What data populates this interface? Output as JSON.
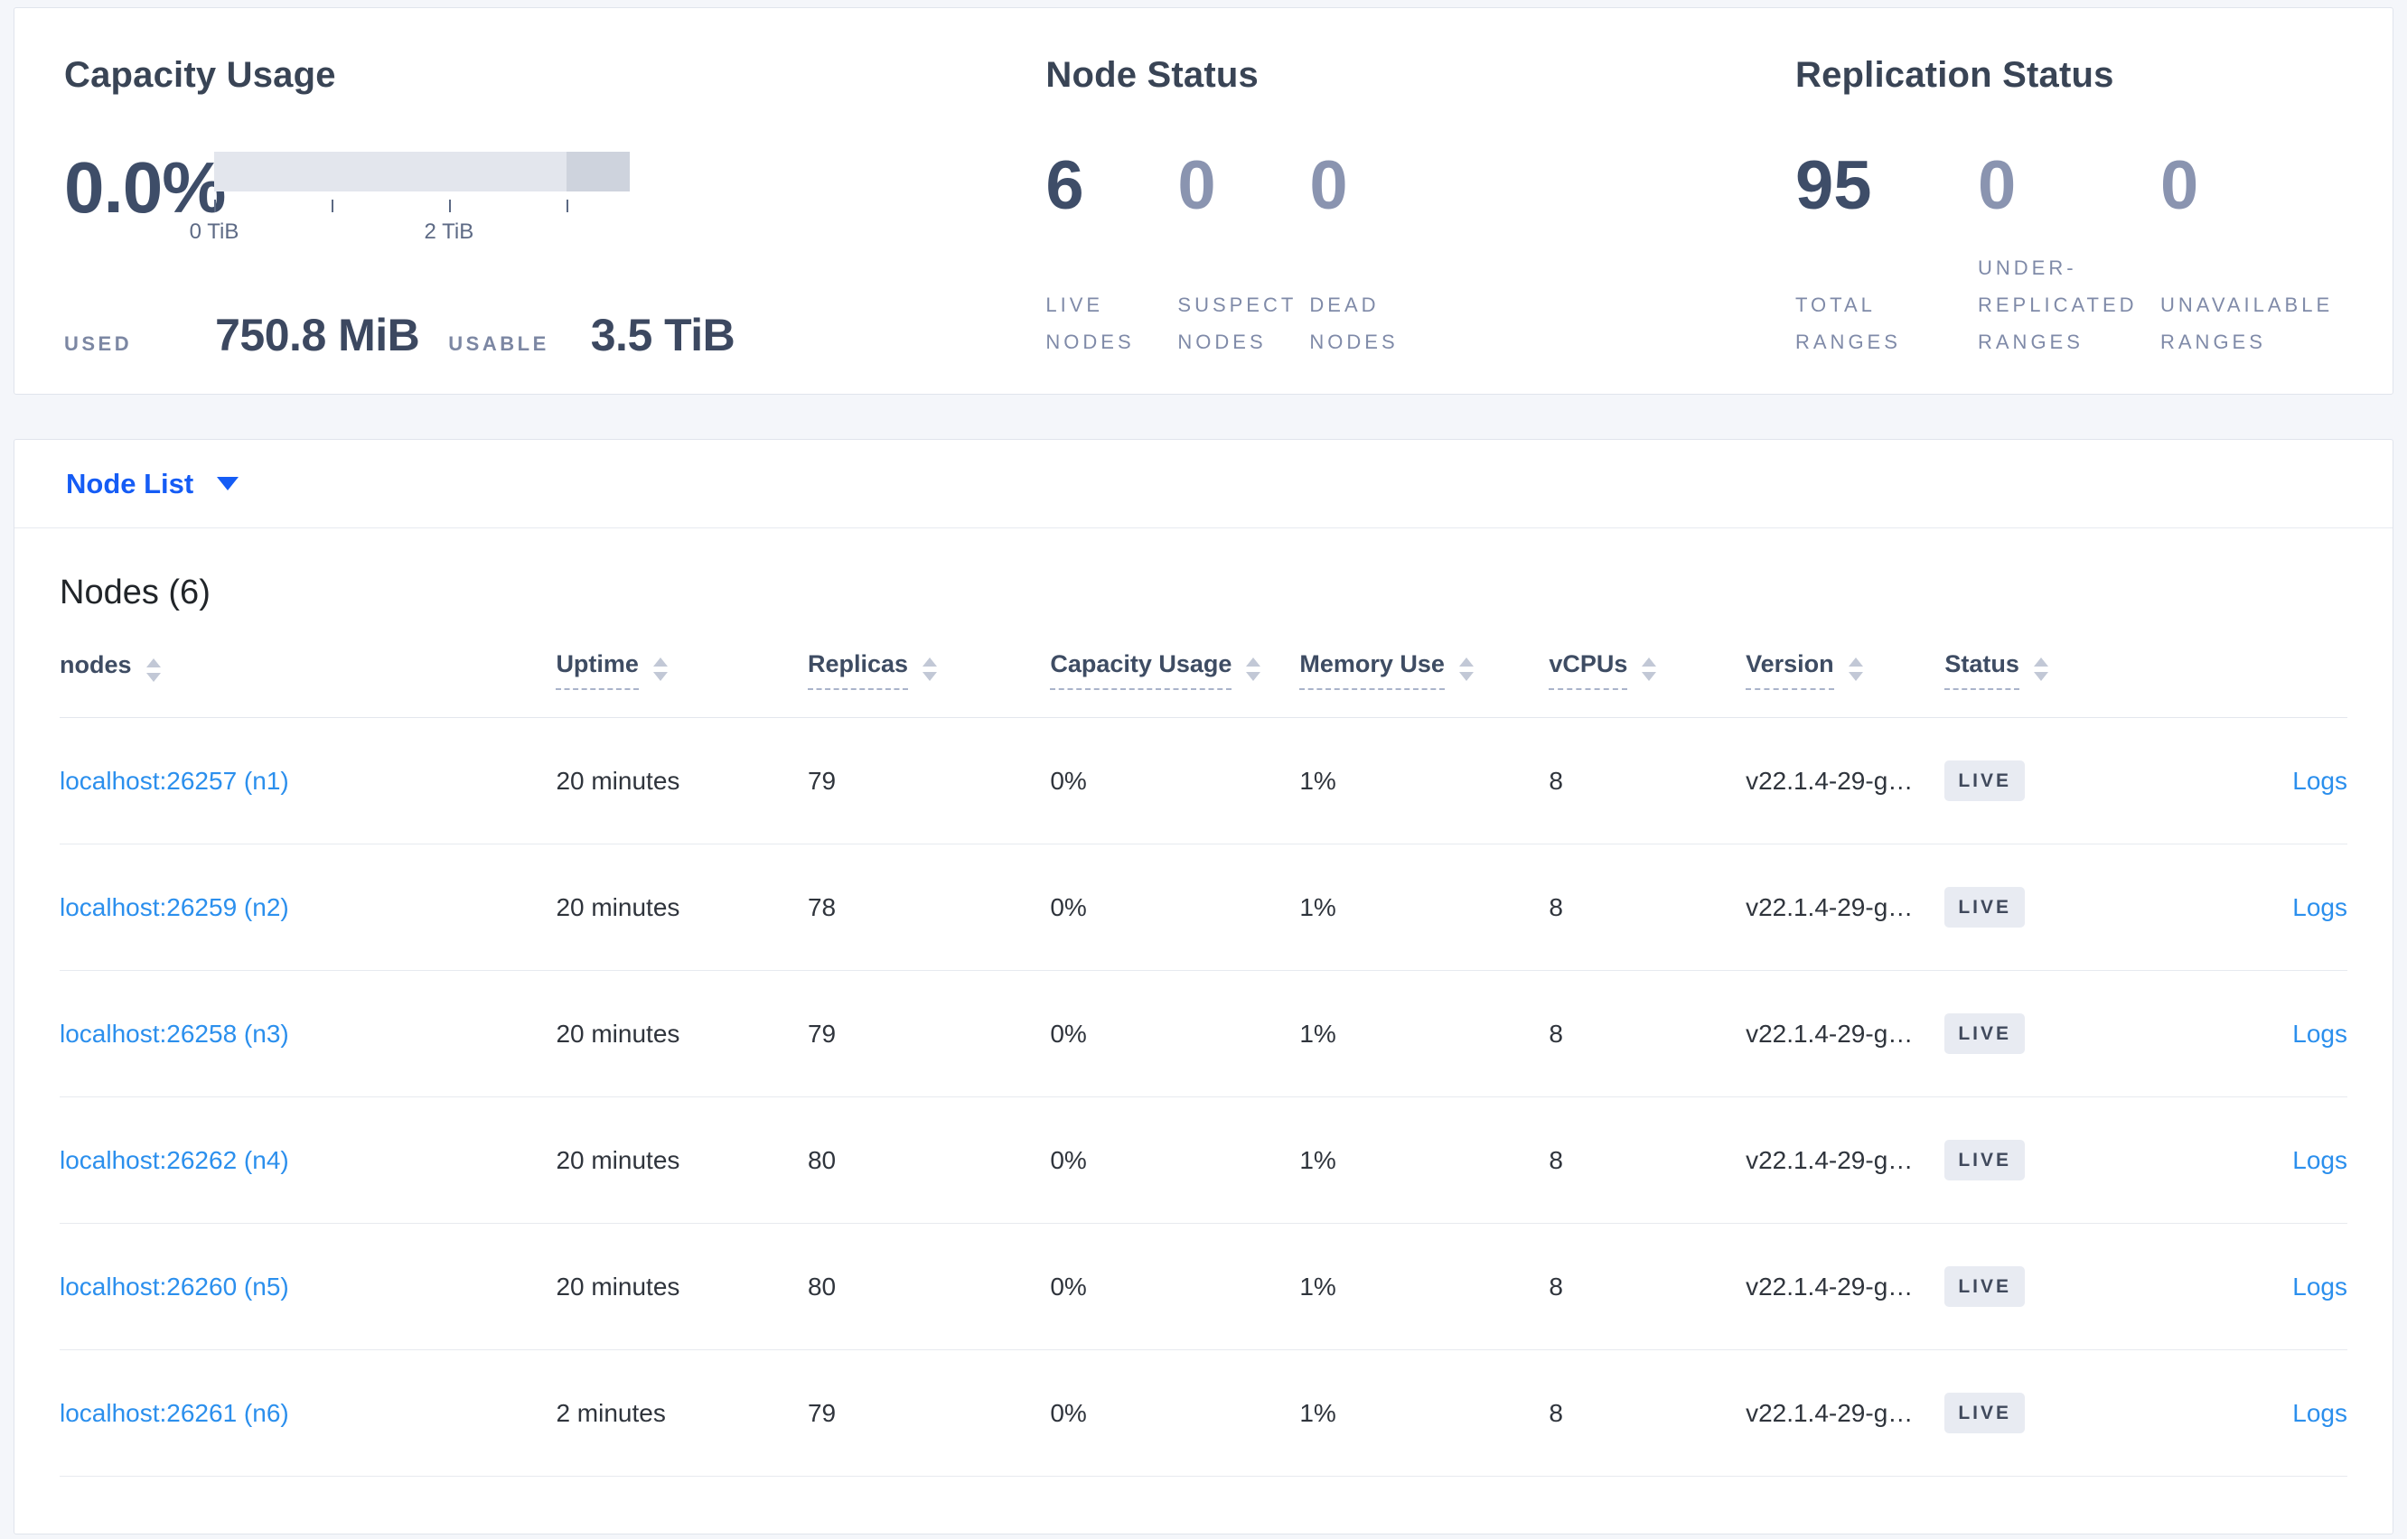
{
  "panels": {
    "capacity": {
      "title": "Capacity Usage",
      "percent": "0.0%",
      "used_label": "USED",
      "used_value": "750.8 MiB",
      "usable_label": "USABLE",
      "usable_value": "3.5 TiB",
      "bar": {
        "axis_tick_positions_tib": [
          0,
          1,
          2,
          3
        ],
        "labeled_ticks": {
          "tick0": "0 TiB",
          "tick2": "2 TiB"
        },
        "used_fraction_pct": 0.0,
        "dark_segment": {
          "from_tib": 3.0,
          "to_tib": 3.53
        },
        "bar_color": "#e3e6ed",
        "dark_segment_color": "#ced3dd"
      }
    },
    "node_status": {
      "title": "Node Status",
      "stats": [
        {
          "value": "6",
          "label": "LIVE NODES"
        },
        {
          "value": "0",
          "label": "SUSPECT NODES"
        },
        {
          "value": "0",
          "label": "DEAD NODES"
        }
      ]
    },
    "replication": {
      "title": "Replication Status",
      "stats": [
        {
          "value": "95",
          "label": "TOTAL RANGES"
        },
        {
          "value": "0",
          "label": "UNDER-REPLICATED RANGES"
        },
        {
          "value": "0",
          "label": "UNAVAILABLE RANGES"
        }
      ]
    }
  },
  "view_selector": {
    "label": "Node List",
    "icon": "caret-down-icon"
  },
  "nodes_section": {
    "title": "Nodes (6)",
    "columns": [
      {
        "label": "nodes"
      },
      {
        "label": "Uptime"
      },
      {
        "label": "Replicas"
      },
      {
        "label": "Capacity Usage"
      },
      {
        "label": "Memory Use"
      },
      {
        "label": "vCPUs"
      },
      {
        "label": "Version"
      },
      {
        "label": "Status"
      }
    ],
    "rows": [
      {
        "address": "localhost:26257 (n1)",
        "uptime": "20 minutes",
        "replicas": "79",
        "capacity": "0%",
        "memory": "1%",
        "vcpus": "8",
        "version": "v22.1.4-29-g…",
        "status": "LIVE",
        "logs": "Logs"
      },
      {
        "address": "localhost:26259 (n2)",
        "uptime": "20 minutes",
        "replicas": "78",
        "capacity": "0%",
        "memory": "1%",
        "vcpus": "8",
        "version": "v22.1.4-29-g…",
        "status": "LIVE",
        "logs": "Logs"
      },
      {
        "address": "localhost:26258 (n3)",
        "uptime": "20 minutes",
        "replicas": "79",
        "capacity": "0%",
        "memory": "1%",
        "vcpus": "8",
        "version": "v22.1.4-29-g…",
        "status": "LIVE",
        "logs": "Logs"
      },
      {
        "address": "localhost:26262 (n4)",
        "uptime": "20 minutes",
        "replicas": "80",
        "capacity": "0%",
        "memory": "1%",
        "vcpus": "8",
        "version": "v22.1.4-29-g…",
        "status": "LIVE",
        "logs": "Logs"
      },
      {
        "address": "localhost:26260 (n5)",
        "uptime": "20 minutes",
        "replicas": "80",
        "capacity": "0%",
        "memory": "1%",
        "vcpus": "8",
        "version": "v22.1.4-29-g…",
        "status": "LIVE",
        "logs": "Logs"
      },
      {
        "address": "localhost:26261 (n6)",
        "uptime": "2 minutes",
        "replicas": "79",
        "capacity": "0%",
        "memory": "1%",
        "vcpus": "8",
        "version": "v22.1.4-29-g…",
        "status": "LIVE",
        "logs": "Logs"
      }
    ]
  },
  "colors": {
    "primary_blue": "#155cf5",
    "link_blue": "#2b8fed",
    "dark_slate": "#3e4d68",
    "muted_stat": "#8a94b0",
    "label_gray": "#7f8aa8",
    "badge_bg": "#e8ebf2",
    "page_bg": "#f4f6fa"
  }
}
